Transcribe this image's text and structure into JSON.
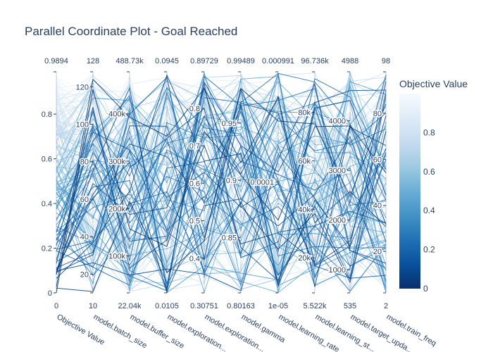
{
  "chart_data": {
    "type": "parallel_coordinates",
    "title": "Parallel Coordinate Plot - Goal Reached",
    "colorbar": {
      "title": "Objective Value",
      "colorscale": [
        "#08306b",
        "#08519c",
        "#2171b5",
        "#4292c6",
        "#6baed6",
        "#9ecae1",
        "#c6dbef",
        "#deebf7",
        "#f7fbff"
      ],
      "ticks": [
        "0",
        "0.2",
        "0.4",
        "0.6",
        "0.8"
      ],
      "range": [
        0,
        1
      ]
    },
    "dimensions": [
      {
        "label": "Objective Value",
        "range": [
          0,
          0.9894
        ],
        "min_label": "0",
        "max_label": "0.9894",
        "ticks": [
          "0",
          "0.2",
          "0.4",
          "0.6",
          "0.8"
        ],
        "tick_values": [
          0,
          0.2,
          0.4,
          0.6,
          0.8
        ],
        "scale": "linear"
      },
      {
        "label": "model.batch_size",
        "range": [
          10,
          128
        ],
        "min_label": "10",
        "max_label": "128",
        "ticks": [
          "20",
          "40",
          "60",
          "80",
          "100",
          "120"
        ],
        "tick_values": [
          20,
          40,
          60,
          80,
          100,
          120
        ],
        "scale": "linear"
      },
      {
        "label": "model.buffer_size",
        "range": [
          22040,
          488730
        ],
        "min_label": "22.04k",
        "max_label": "488.73k",
        "ticks": [
          "100k",
          "200k",
          "300k",
          "400k"
        ],
        "tick_values": [
          100000,
          200000,
          300000,
          400000
        ],
        "scale": "linear"
      },
      {
        "label": "model.exploration...",
        "range": [
          0.0105,
          0.0945
        ],
        "min_label": "0.0105",
        "max_label": "0.0945",
        "ticks": [],
        "tick_values": [],
        "scale": "linear"
      },
      {
        "label": "model.exploration...",
        "range": [
          0.30751,
          0.89729
        ],
        "min_label": "0.30751",
        "max_label": "0.89729",
        "ticks": [
          "0.4",
          "0.5",
          "0.6",
          "0.7",
          "0.8"
        ],
        "tick_values": [
          0.4,
          0.5,
          0.6,
          0.7,
          0.8
        ],
        "scale": "linear"
      },
      {
        "label": "model.gamma",
        "range": [
          0.80163,
          0.99489
        ],
        "min_label": "0.80163",
        "max_label": "0.99489",
        "ticks": [
          "0.85",
          "0.9",
          "0.95"
        ],
        "tick_values": [
          0.85,
          0.9,
          0.95
        ],
        "scale": "linear"
      },
      {
        "label": "model.learning_rate",
        "range": [
          1e-05,
          0.000991
        ],
        "min_label": "1e-05",
        "max_label": "0.000991",
        "ticks": [
          "0.0001"
        ],
        "tick_values": [
          0.0001
        ],
        "scale": "log"
      },
      {
        "label": "model.learning_st...",
        "range": [
          5522,
          96736
        ],
        "min_label": "5.522k",
        "max_label": "96.736k",
        "ticks": [
          "20k",
          "40k",
          "60k",
          "80k"
        ],
        "tick_values": [
          20000,
          40000,
          60000,
          80000
        ],
        "scale": "linear"
      },
      {
        "label": "model.target_upda...",
        "range": [
          535,
          4988
        ],
        "min_label": "535",
        "max_label": "4988",
        "ticks": [
          "1000",
          "2000",
          "3000",
          "4000"
        ],
        "tick_values": [
          1000,
          2000,
          3000,
          4000
        ],
        "scale": "linear"
      },
      {
        "label": "model.train_freq",
        "range": [
          2,
          98
        ],
        "min_label": "2",
        "max_label": "98",
        "ticks": [
          "20",
          "40",
          "60",
          "80"
        ],
        "tick_values": [
          20,
          40,
          60,
          80
        ],
        "scale": "linear"
      }
    ],
    "trial_count_estimate": 150
  }
}
